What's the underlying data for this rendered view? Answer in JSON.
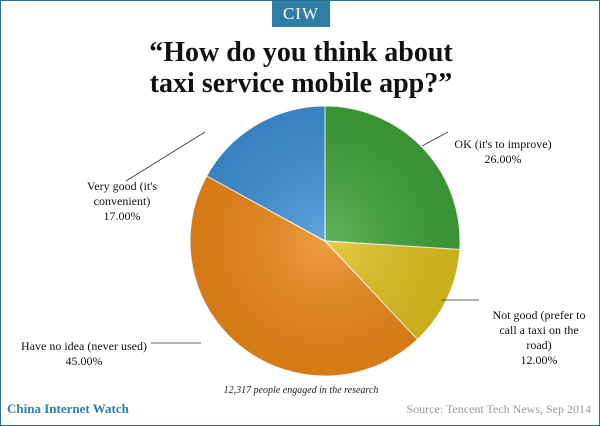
{
  "badge": "CIW",
  "chart_data": {
    "type": "pie",
    "title": "“How do you think about\ntaxi service mobile app?”",
    "slices": [
      {
        "label": "OK (it's to improve)",
        "value": 26.0,
        "value_label": "26.00%",
        "color": "#3fa338"
      },
      {
        "label": "Not good (prefer to call a taxi on the road)",
        "value": 12.0,
        "value_label": "12.00%",
        "color": "#e0c21e"
      },
      {
        "label": "Have no idea (never used)",
        "value": 45.0,
        "value_label": "45.00%",
        "color": "#ec8718"
      },
      {
        "label": "Very good (it's convenient)",
        "value": 17.0,
        "value_label": "17.00%",
        "color": "#3f90d6"
      }
    ],
    "start_angle_deg": 0,
    "direction": "clockwise"
  },
  "labels": {
    "ok": "OK (it's to improve)",
    "not_good": "Not good (prefer to\ncall a taxi on the\nroad)",
    "no_idea": "Have no idea (never used)",
    "very_good": "Very good (it's\nconvenient)"
  },
  "footnote": "12,317 people engaged in the research",
  "brand": "China Internet Watch",
  "source": "Source: Tencent Tech News, Sep 2014"
}
